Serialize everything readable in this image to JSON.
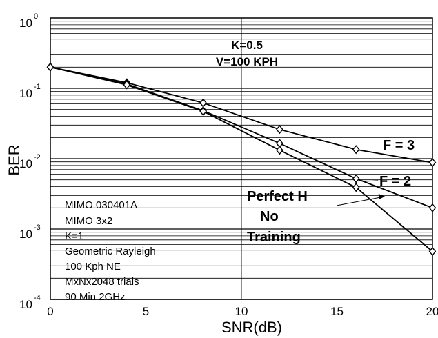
{
  "chart_data": {
    "type": "line",
    "xlabel": "SNR(dB)",
    "ylabel": "BER",
    "xlim": [
      0,
      20
    ],
    "ylim": [
      0.0001,
      1
    ],
    "yscale": "log",
    "grid": true,
    "x_ticks": [
      "0",
      "5",
      "10",
      "15",
      "20"
    ],
    "y_ticks": [
      {
        "base": "10",
        "exp": "0",
        "value": 1
      },
      {
        "base": "10",
        "exp": "-1",
        "value": 0.1
      },
      {
        "base": "10",
        "exp": "-2",
        "value": 0.01
      },
      {
        "base": "10",
        "exp": "-3",
        "value": 0.001
      },
      {
        "base": "10",
        "exp": "-4",
        "value": 0.0001
      }
    ],
    "series": [
      {
        "name": "F = 3",
        "x": [
          0,
          4,
          8,
          12,
          16,
          20
        ],
        "y": [
          0.2,
          0.12,
          0.062,
          0.026,
          0.0135,
          0.0088
        ]
      },
      {
        "name": "F = 2",
        "x": [
          0,
          4,
          8,
          12,
          16,
          20
        ],
        "y": [
          0.2,
          0.115,
          0.048,
          0.0165,
          0.0052,
          0.002
        ]
      },
      {
        "name": "Perfect H No Training",
        "x": [
          0,
          4,
          8,
          12,
          16,
          20
        ],
        "y": [
          0.2,
          0.112,
          0.047,
          0.0132,
          0.0039,
          0.00048
        ]
      }
    ],
    "annotations": {
      "params_line1": "K=0.5",
      "params_line2": "V=100 KPH",
      "label_f3": "F = 3",
      "label_f2": "F = 2",
      "perfect_line1": "Perfect H",
      "perfect_line2": "No",
      "perfect_line3": "Training",
      "info": [
        "MIMO 030401A",
        "MIMO 3x2",
        "K=1",
        "Geometric Rayleigh",
        "100 Kph NE",
        "MxNx2048 trials",
        "90 Min 2GHz"
      ]
    }
  }
}
